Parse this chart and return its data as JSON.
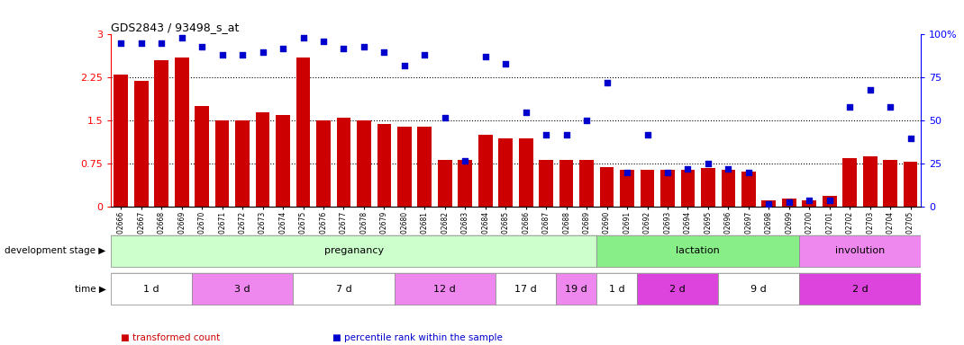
{
  "title": "GDS2843 / 93498_s_at",
  "samples": [
    "GSM202666",
    "GSM202667",
    "GSM202668",
    "GSM202669",
    "GSM202670",
    "GSM202671",
    "GSM202672",
    "GSM202673",
    "GSM202674",
    "GSM202675",
    "GSM202676",
    "GSM202677",
    "GSM202678",
    "GSM202679",
    "GSM202680",
    "GSM202681",
    "GSM202682",
    "GSM202683",
    "GSM202684",
    "GSM202685",
    "GSM202686",
    "GSM202687",
    "GSM202688",
    "GSM202689",
    "GSM202690",
    "GSM202691",
    "GSM202692",
    "GSM202693",
    "GSM202694",
    "GSM202695",
    "GSM202696",
    "GSM202697",
    "GSM202698",
    "GSM202699",
    "GSM202700",
    "GSM202701",
    "GSM202702",
    "GSM202703",
    "GSM202704",
    "GSM202705"
  ],
  "bar_values": [
    2.3,
    2.2,
    2.55,
    2.6,
    1.75,
    1.5,
    1.5,
    1.65,
    1.6,
    2.6,
    1.5,
    1.55,
    1.5,
    1.45,
    1.4,
    1.4,
    0.82,
    0.82,
    1.25,
    1.2,
    1.2,
    0.82,
    0.82,
    0.82,
    0.7,
    0.65,
    0.65,
    0.65,
    0.65,
    0.68,
    0.65,
    0.62,
    0.12,
    0.15,
    0.12,
    0.2,
    0.85,
    0.88,
    0.82,
    0.78
  ],
  "percentile_values": [
    95,
    95,
    95,
    98,
    93,
    88,
    88,
    90,
    92,
    98,
    96,
    92,
    93,
    90,
    82,
    88,
    52,
    27,
    87,
    83,
    55,
    42,
    42,
    50,
    72,
    20,
    42,
    20,
    22,
    25,
    22,
    20,
    2,
    3,
    4,
    4,
    58,
    68,
    58,
    40
  ],
  "bar_color": "#cc0000",
  "percentile_color": "#0000cc",
  "bar_ylim": [
    0,
    3.0
  ],
  "pct_ylim": [
    0,
    100
  ],
  "bar_yticks": [
    0,
    0.75,
    1.5,
    2.25,
    3.0
  ],
  "bar_yticklabels": [
    "0",
    "0.75",
    "1.5",
    "2.25",
    "3"
  ],
  "pct_yticks": [
    0,
    25,
    50,
    75,
    100
  ],
  "pct_yticklabels": [
    "0",
    "25",
    "50",
    "75",
    "100%"
  ],
  "development_stages": [
    {
      "label": "preganancy",
      "start": 0,
      "end": 24,
      "color": "#ccffcc"
    },
    {
      "label": "lactation",
      "start": 24,
      "end": 34,
      "color": "#88ee88"
    },
    {
      "label": "involution",
      "start": 34,
      "end": 40,
      "color": "#ee88ee"
    }
  ],
  "time_periods": [
    {
      "label": "1 d",
      "start": 0,
      "end": 4,
      "color": "#ffffff"
    },
    {
      "label": "3 d",
      "start": 4,
      "end": 9,
      "color": "#ee88ee"
    },
    {
      "label": "7 d",
      "start": 9,
      "end": 14,
      "color": "#ffffff"
    },
    {
      "label": "12 d",
      "start": 14,
      "end": 19,
      "color": "#ee88ee"
    },
    {
      "label": "17 d",
      "start": 19,
      "end": 22,
      "color": "#ffffff"
    },
    {
      "label": "19 d",
      "start": 22,
      "end": 24,
      "color": "#ee88ee"
    },
    {
      "label": "1 d",
      "start": 24,
      "end": 26,
      "color": "#ffffff"
    },
    {
      "label": "2 d",
      "start": 26,
      "end": 30,
      "color": "#dd44dd"
    },
    {
      "label": "9 d",
      "start": 30,
      "end": 34,
      "color": "#ffffff"
    },
    {
      "label": "2 d",
      "start": 34,
      "end": 40,
      "color": "#dd44dd"
    }
  ],
  "bg_color": "#f0f0f0",
  "legend_items": [
    {
      "label": "transformed count",
      "color": "#cc0000"
    },
    {
      "label": "percentile rank within the sample",
      "color": "#0000cc"
    }
  ]
}
